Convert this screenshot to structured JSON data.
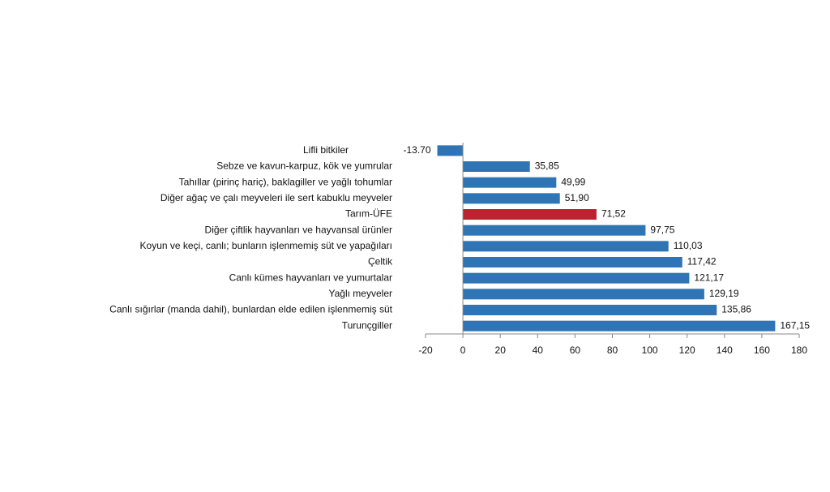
{
  "chart_data": {
    "type": "hbar",
    "categories": [
      "Lifli bitkiler",
      "Sebze ve kavun-karpuz, kök ve yumrular",
      "Tahıllar (pirinç hariç), baklagiller ve yağlı tohumlar",
      "Diğer ağaç ve çalı meyveleri ile sert kabuklu meyveler",
      "Tarım-ÜFE",
      "Diğer çiftlik hayvanları ve hayvansal ürünler",
      "Koyun ve keçi, canlı; bunların işlenmemiş süt ve yapağıları",
      "Çeltik",
      "Canlı kümes hayvanları ve yumurtalar",
      "Yağlı meyveler",
      "Canlı sığırlar (manda dahil), bunlardan elde edilen işlenmemiş süt",
      "Turunçgiller"
    ],
    "values": [
      -13.7,
      35.85,
      49.99,
      51.9,
      71.52,
      97.75,
      110.03,
      117.42,
      121.17,
      129.19,
      135.86,
      167.15
    ],
    "value_labels": [
      "-13.70",
      "35,85",
      "49,99",
      "51,90",
      "71,52",
      "97,75",
      "110,03",
      "117,42",
      "121,17",
      "129,19",
      "135,86",
      "167,15"
    ],
    "colors": [
      "#2f75b5",
      "#2f75b5",
      "#2f75b5",
      "#2f75b5",
      "#c0202f",
      "#2f75b5",
      "#2f75b5",
      "#2f75b5",
      "#2f75b5",
      "#2f75b5",
      "#2f75b5",
      "#2f75b5"
    ],
    "xlim": [
      -20,
      180
    ],
    "xticks": [
      -20,
      0,
      20,
      40,
      60,
      80,
      100,
      120,
      140,
      160,
      180
    ]
  }
}
